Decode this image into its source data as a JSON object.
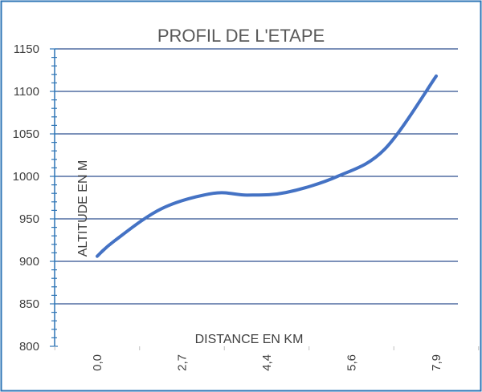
{
  "chart_data": {
    "type": "line",
    "title": "PROFIL DE L'ETAPE",
    "xlabel": "DISTANCE EN KM",
    "ylabel": "ALTITUDE EN M",
    "categories": [
      "0,0",
      "2,7",
      "4,4",
      "5,6",
      "7,9"
    ],
    "series": [
      {
        "x": [
          0.0,
          0.4,
          1.5,
          2.7,
          3.5,
          4.4,
          5.6,
          6.7,
          7.9
        ],
        "values": [
          906,
          924,
          962,
          980,
          978,
          981,
          1000,
          1032,
          1118
        ]
      }
    ],
    "y_ticks": [
      "1150",
      "1100",
      "1050",
      "1000",
      "950",
      "900",
      "850",
      "800"
    ],
    "ylim": [
      800,
      1150
    ],
    "xlim": [
      0.0,
      7.9
    ],
    "grid": "horizontal",
    "colors": {
      "line": "#4472c4",
      "grid": "#2e4f8f",
      "axis": "#2e75b6",
      "border": "#2e75b6"
    }
  }
}
